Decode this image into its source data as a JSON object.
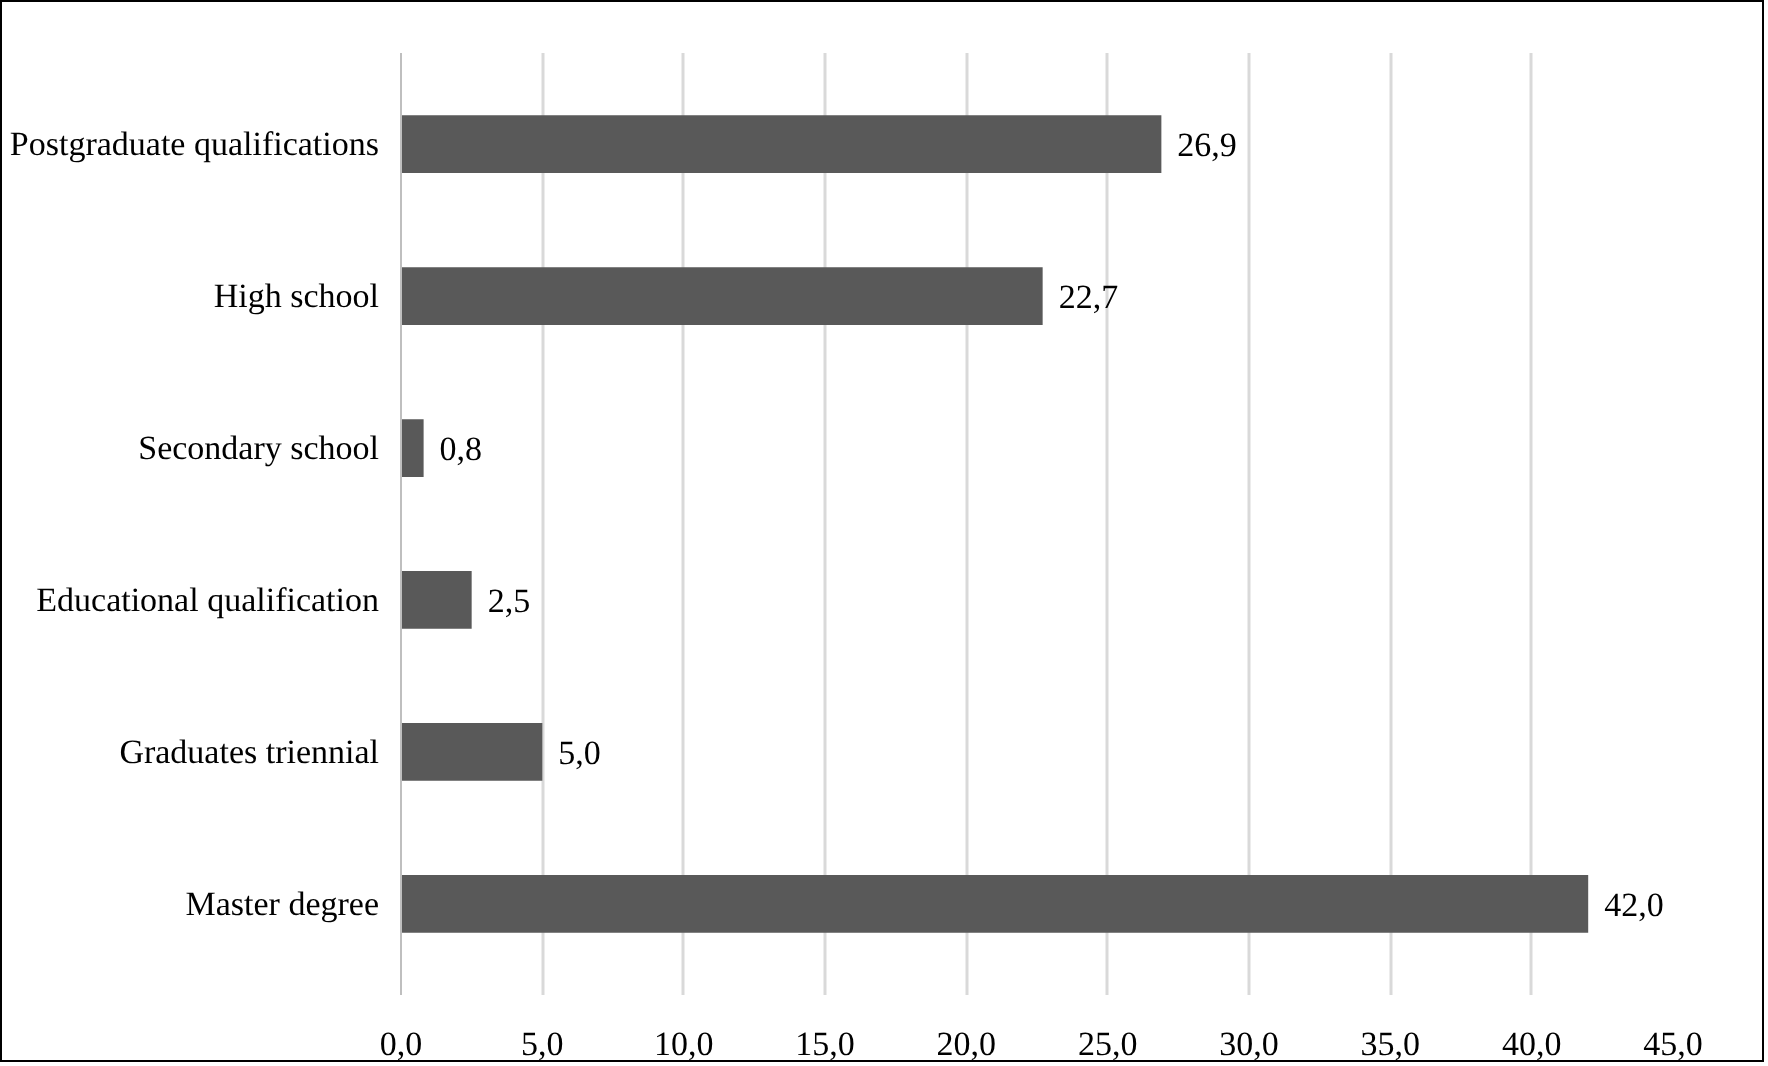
{
  "chart_data": {
    "type": "bar",
    "orientation": "horizontal",
    "categories": [
      "Postgraduate qualifications",
      "High school",
      "Secondary school",
      "Educational qualification",
      "Graduates triennial",
      "Master degree"
    ],
    "values": [
      26.9,
      22.7,
      0.8,
      2.5,
      5.0,
      42.0
    ],
    "value_labels": [
      "26,9",
      "22,7",
      "0,8",
      "2,5",
      "5,0",
      "42,0"
    ],
    "color": "#595959",
    "xlim": [
      0,
      45
    ],
    "xticks": [
      {
        "value": 0,
        "label": "0,0"
      },
      {
        "value": 5,
        "label": "5,0"
      },
      {
        "value": 10,
        "label": "10,0"
      },
      {
        "value": 15,
        "label": "15,0"
      },
      {
        "value": 20,
        "label": "20,0"
      },
      {
        "value": 25,
        "label": "25,0"
      },
      {
        "value": 30,
        "label": "30,0"
      },
      {
        "value": 35,
        "label": "35,0"
      },
      {
        "value": 40,
        "label": "40,0"
      },
      {
        "value": 45,
        "label": "45,0"
      }
    ],
    "grid": "x"
  }
}
